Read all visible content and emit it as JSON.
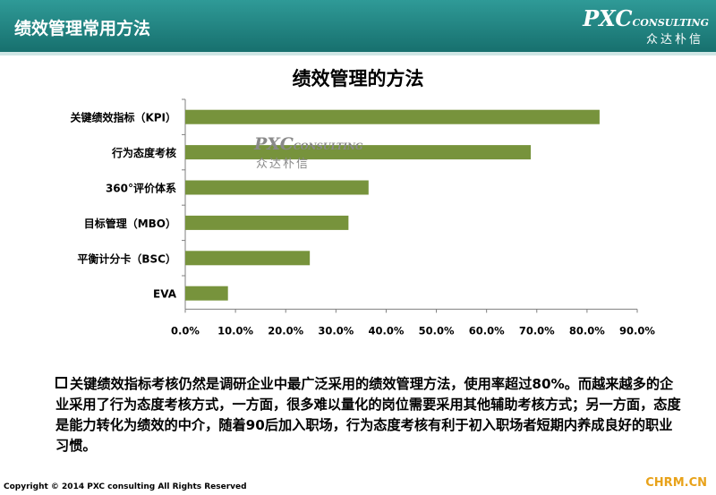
{
  "header": {
    "title": "绩效管理常用方法"
  },
  "logo": {
    "primary": "PXC",
    "secondary": "CONSULTING",
    "chinese": "众达朴信"
  },
  "chart_data": {
    "type": "bar",
    "orientation": "horizontal",
    "title": "绩效管理的方法",
    "categories": [
      "关键绩效指标（KPI）",
      "行为态度考核",
      "360°评价体系",
      "目标管理（MBO）",
      "平衡计分卡（BSC）",
      "EVA"
    ],
    "values": [
      82.5,
      68.8,
      36.5,
      32.5,
      24.8,
      8.5
    ],
    "unit": "%",
    "xlim": [
      0,
      90
    ],
    "ticks": [
      0,
      10,
      20,
      30,
      40,
      50,
      60,
      70,
      80,
      90
    ],
    "tick_labels": [
      "0.0%",
      "10.0%",
      "20.0%",
      "30.0%",
      "40.0%",
      "50.0%",
      "60.0%",
      "70.0%",
      "80.0%",
      "90.0%"
    ],
    "grid": false,
    "bar_color": "#77933c"
  },
  "watermark": {
    "primary": "PXC",
    "secondary": "CONSULTING",
    "chinese": "众达朴信"
  },
  "note": {
    "text": "关键绩效指标考核仍然是调研企业中最广泛采用的绩效管理方法，使用率超过80%。而越来越多的企业采用了行为态度考核方式，一方面，很多难以量化的岗位需要采用其他辅助考核方式；另一方面，态度是能力转化为绩效的中介，随着90后加入职场，行为态度考核有利于初入职场者短期内养成良好的职业习惯。"
  },
  "footer": {
    "copyright": "Copyright © 2014 PXC consulting All Rights Reserved",
    "site": "CHRM.CN"
  }
}
